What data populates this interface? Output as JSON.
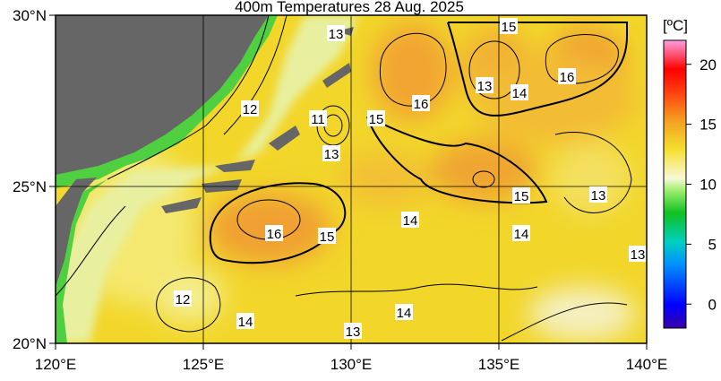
{
  "map": {
    "title": "400m Temperatures  28 Aug. 2025",
    "lon_labels": [
      "120°E",
      "125°E",
      "130°E",
      "135°E",
      "140°E"
    ],
    "lat_labels": [
      "30°N",
      "25°N",
      "20°N"
    ],
    "colorbar": {
      "label": "[ºC]",
      "range": [
        -2,
        22
      ],
      "ticks": [
        0,
        5,
        10,
        15,
        20
      ]
    },
    "contour_labels": [
      13,
      15,
      16,
      13,
      14,
      16,
      12,
      11,
      15,
      13,
      15,
      13,
      14,
      16,
      15,
      14,
      13,
      12,
      14,
      14,
      13
    ]
  }
}
